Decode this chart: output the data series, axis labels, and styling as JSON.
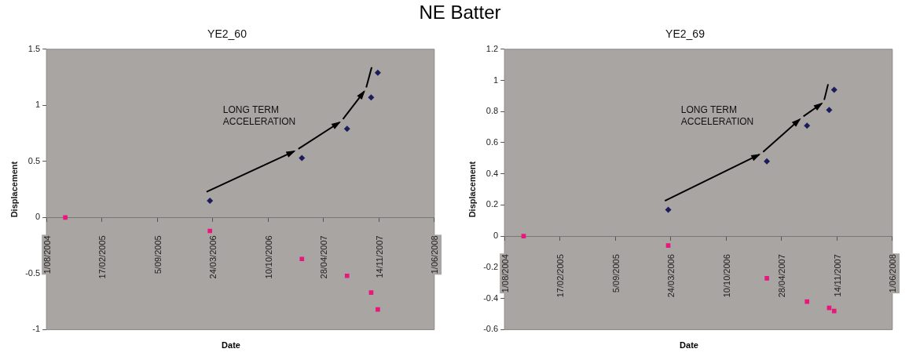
{
  "chart_data": [
    {
      "type": "other",
      "title": "NE Batter"
    },
    {
      "type": "scatter",
      "title": "YE2_60",
      "xlabel": "Date",
      "ylabel": "Displacement",
      "x": [
        "2004-10-08",
        "2006-03-14",
        "2007-02-09",
        "2007-07-22",
        "2007-10-17",
        "2007-11-10"
      ],
      "series": [
        {
          "color": "#1c1c5c",
          "marker": "diamond",
          "values": [
            null,
            0.15,
            0.53,
            0.79,
            1.07,
            1.29
          ]
        },
        {
          "color": "#e8177c",
          "marker": "square",
          "values": [
            0,
            -0.12,
            -0.37,
            -0.52,
            -0.67,
            -0.82
          ]
        }
      ],
      "xlim": [
        "2004-08-01",
        "2008-06-01"
      ],
      "xticks": [
        {
          "value": "2004-08-01",
          "label": "1/08/2004"
        },
        {
          "value": "2005-02-17",
          "label": "17/02/2005"
        },
        {
          "value": "2005-09-05",
          "label": "5/09/2005"
        },
        {
          "value": "2006-03-24",
          "label": "24/03/2006"
        },
        {
          "value": "2006-10-10",
          "label": "10/10/2006"
        },
        {
          "value": "2007-04-28",
          "label": "28/04/2007"
        },
        {
          "value": "2007-11-14",
          "label": "14/11/2007"
        },
        {
          "value": "2008-06-01",
          "label": "1/06/2008"
        }
      ],
      "ylim": [
        -1,
        1.5
      ],
      "yticks": [
        -1,
        -0.5,
        0,
        0.5,
        1,
        1.5
      ],
      "annotations": [
        "LONG TERM ACCELERATION"
      ],
      "grid": false,
      "legend": false
    },
    {
      "type": "scatter",
      "title": "YE2_69",
      "xlabel": "Date",
      "ylabel": "Displacement",
      "x": [
        "2004-10-09",
        "2006-03-15",
        "2007-03-06",
        "2007-07-29",
        "2007-10-17",
        "2007-11-04"
      ],
      "series": [
        {
          "color": "#1c1c5c",
          "marker": "diamond",
          "values": [
            null,
            0.17,
            0.48,
            0.71,
            0.81,
            0.94
          ]
        },
        {
          "color": "#e8177c",
          "marker": "square",
          "values": [
            0,
            -0.06,
            -0.27,
            -0.42,
            -0.46,
            -0.48
          ]
        }
      ],
      "xlim": [
        "2004-08-01",
        "2008-06-01"
      ],
      "xticks": [
        {
          "value": "2004-08-01",
          "label": "1/08/2004"
        },
        {
          "value": "2005-02-17",
          "label": "17/02/2005"
        },
        {
          "value": "2005-09-05",
          "label": "5/09/2005"
        },
        {
          "value": "2006-03-24",
          "label": "24/03/2006"
        },
        {
          "value": "2006-10-10",
          "label": "10/10/2006"
        },
        {
          "value": "2007-04-28",
          "label": "28/04/2007"
        },
        {
          "value": "2007-11-14",
          "label": "14/11/2007"
        },
        {
          "value": "2008-06-01",
          "label": "1/06/2008"
        }
      ],
      "ylim": [
        -0.6,
        1.2
      ],
      "yticks": [
        -0.6,
        -0.4,
        -0.2,
        0,
        0.2,
        0.4,
        0.6,
        0.8,
        1,
        1.2
      ],
      "annotations": [
        "LONG TERM ACCELERATION"
      ],
      "grid": false,
      "legend": false
    }
  ]
}
